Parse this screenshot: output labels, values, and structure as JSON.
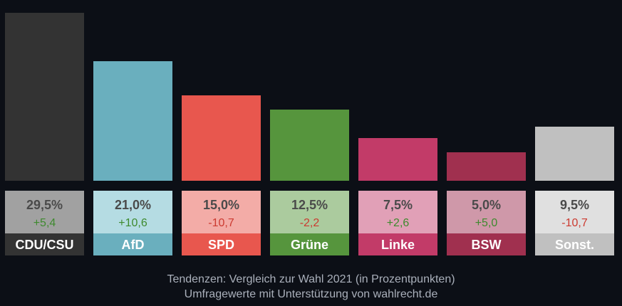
{
  "chart_data": {
    "type": "bar",
    "categories": [
      "CDU/CSU",
      "AfD",
      "SPD",
      "Grüne",
      "Linke",
      "BSW",
      "Sonst."
    ],
    "values": [
      29.5,
      21.0,
      15.0,
      12.5,
      7.5,
      5.0,
      9.5
    ],
    "value_labels": [
      "29,5%",
      "21,0%",
      "15,0%",
      "12,5%",
      "7,5%",
      "5,0%",
      "9,5%"
    ],
    "changes": [
      5.4,
      10.6,
      -10.7,
      -2.2,
      2.6,
      5.0,
      -10.7
    ],
    "change_labels": [
      "+5,4",
      "+10,6",
      "-10,7",
      "-2,2",
      "+2,6",
      "+5,0",
      "-10,7"
    ],
    "colors": [
      "#333333",
      "#6aafbe",
      "#e8574e",
      "#56953d",
      "#c23b68",
      "#a0304f",
      "#c0c0c0"
    ],
    "light_colors": [
      "#a1a1a1",
      "#b5dce3",
      "#f3aca7",
      "#abcb9e",
      "#e1a0b7",
      "#cf98a9",
      "#e0e0e0"
    ],
    "positive_color": "#3e8a2e",
    "negative_color": "#cc3a30",
    "ylim": [
      0,
      30
    ],
    "unit": "%",
    "footnote_lines": [
      "Tendenzen: Vergleich zur Wahl 2021 (in Prozentpunkten)",
      "Umfragewerte mit Unterstützung von wahlrecht.de"
    ]
  },
  "background": "#0c0f16"
}
